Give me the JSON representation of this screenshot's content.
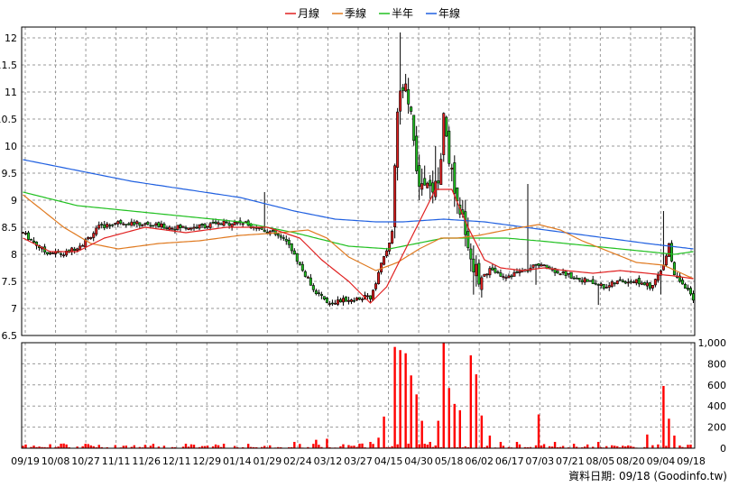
{
  "chart_data": {
    "type": "candlestick",
    "legend": [
      {
        "name": "月線",
        "color": "#e02020"
      },
      {
        "name": "季線",
        "color": "#e07a20"
      },
      {
        "name": "半年",
        "color": "#20c020"
      },
      {
        "name": "年線",
        "color": "#2060e0"
      }
    ],
    "source_text": "資料日期: 09/18  (Goodinfo.tw)",
    "price_ylim": [
      6.5,
      12.2
    ],
    "price_ticks": [
      "12",
      "11.5",
      "11",
      "10.5",
      "10",
      "9.5",
      "9",
      "8.5",
      "8",
      "7.5",
      "7",
      "6.5"
    ],
    "volume_ylim": [
      0,
      1000
    ],
    "volume_ticks": [
      "1,000",
      "800",
      "600",
      "400",
      "200",
      "0"
    ],
    "x_labels": [
      "09/19",
      "10/08",
      "10/27",
      "11/11",
      "11/26",
      "12/11",
      "12/29",
      "01/14",
      "01/29",
      "02/24",
      "03/12",
      "03/27",
      "04/15",
      "04/30",
      "05/18",
      "06/02",
      "06/17",
      "07/03",
      "07/21",
      "08/05",
      "08/20",
      "09/04",
      "09/18"
    ],
    "n_bars": 248,
    "series_keypoints": {
      "close": [
        [
          0,
          8.4
        ],
        [
          8,
          8.05
        ],
        [
          15,
          8.0
        ],
        [
          22,
          8.2
        ],
        [
          28,
          8.5
        ],
        [
          36,
          8.6
        ],
        [
          45,
          8.55
        ],
        [
          55,
          8.5
        ],
        [
          63,
          8.5
        ],
        [
          70,
          8.55
        ],
        [
          80,
          8.6
        ],
        [
          86,
          8.5
        ],
        [
          92,
          8.4
        ],
        [
          98,
          8.2
        ],
        [
          103,
          7.7
        ],
        [
          108,
          7.3
        ],
        [
          112,
          7.1
        ],
        [
          118,
          7.15
        ],
        [
          124,
          7.2
        ],
        [
          128,
          7.2
        ],
        [
          132,
          7.8
        ],
        [
          136,
          8.4
        ],
        [
          138,
          10.8
        ],
        [
          141,
          11.0
        ],
        [
          143,
          10.5
        ],
        [
          146,
          9.3
        ],
        [
          150,
          9.2
        ],
        [
          153,
          9.3
        ],
        [
          155,
          10.5
        ],
        [
          157,
          9.8
        ],
        [
          160,
          9.0
        ],
        [
          163,
          8.5
        ],
        [
          165,
          7.9
        ],
        [
          168,
          7.6
        ],
        [
          172,
          7.7
        ],
        [
          178,
          7.6
        ],
        [
          185,
          7.7
        ],
        [
          190,
          7.8
        ],
        [
          196,
          7.7
        ],
        [
          202,
          7.6
        ],
        [
          208,
          7.5
        ],
        [
          214,
          7.4
        ],
        [
          220,
          7.5
        ],
        [
          226,
          7.5
        ],
        [
          232,
          7.4
        ],
        [
          236,
          7.8
        ],
        [
          238,
          8.2
        ],
        [
          240,
          7.6
        ],
        [
          244,
          7.4
        ],
        [
          247,
          7.15
        ]
      ],
      "high_spikes": [
        [
          89,
          9.15
        ],
        [
          139,
          12.1
        ],
        [
          152,
          10.0
        ],
        [
          186,
          9.3
        ],
        [
          236,
          8.8
        ]
      ],
      "ma_month": [
        [
          0,
          8.3
        ],
        [
          10,
          8.05
        ],
        [
          20,
          8.05
        ],
        [
          30,
          8.3
        ],
        [
          45,
          8.5
        ],
        [
          60,
          8.4
        ],
        [
          75,
          8.5
        ],
        [
          90,
          8.5
        ],
        [
          102,
          8.3
        ],
        [
          110,
          7.9
        ],
        [
          120,
          7.5
        ],
        [
          128,
          7.1
        ],
        [
          134,
          7.4
        ],
        [
          140,
          8.0
        ],
        [
          146,
          8.6
        ],
        [
          152,
          9.2
        ],
        [
          158,
          9.2
        ],
        [
          164,
          8.5
        ],
        [
          170,
          7.9
        ],
        [
          176,
          7.75
        ],
        [
          184,
          7.7
        ],
        [
          192,
          7.75
        ],
        [
          200,
          7.7
        ],
        [
          210,
          7.65
        ],
        [
          220,
          7.7
        ],
        [
          230,
          7.65
        ],
        [
          240,
          7.6
        ],
        [
          247,
          7.55
        ]
      ],
      "ma_quarter": [
        [
          0,
          9.1
        ],
        [
          15,
          8.5
        ],
        [
          25,
          8.2
        ],
        [
          35,
          8.1
        ],
        [
          50,
          8.2
        ],
        [
          65,
          8.25
        ],
        [
          80,
          8.35
        ],
        [
          95,
          8.4
        ],
        [
          105,
          8.45
        ],
        [
          112,
          8.3
        ],
        [
          120,
          7.95
        ],
        [
          130,
          7.7
        ],
        [
          138,
          7.85
        ],
        [
          146,
          8.1
        ],
        [
          154,
          8.3
        ],
        [
          160,
          8.3
        ],
        [
          168,
          8.35
        ],
        [
          178,
          8.45
        ],
        [
          190,
          8.55
        ],
        [
          198,
          8.45
        ],
        [
          206,
          8.25
        ],
        [
          216,
          8.05
        ],
        [
          226,
          7.85
        ],
        [
          236,
          7.8
        ],
        [
          247,
          7.55
        ]
      ],
      "ma_half": [
        [
          0,
          9.15
        ],
        [
          20,
          8.9
        ],
        [
          40,
          8.8
        ],
        [
          60,
          8.7
        ],
        [
          80,
          8.6
        ],
        [
          100,
          8.4
        ],
        [
          120,
          8.15
        ],
        [
          135,
          8.1
        ],
        [
          145,
          8.2
        ],
        [
          155,
          8.3
        ],
        [
          165,
          8.3
        ],
        [
          178,
          8.3
        ],
        [
          190,
          8.25
        ],
        [
          200,
          8.2
        ],
        [
          210,
          8.15
        ],
        [
          220,
          8.1
        ],
        [
          230,
          8.05
        ],
        [
          240,
          8.0
        ],
        [
          247,
          8.05
        ]
      ],
      "ma_year": [
        [
          0,
          9.75
        ],
        [
          20,
          9.55
        ],
        [
          40,
          9.35
        ],
        [
          60,
          9.2
        ],
        [
          80,
          9.05
        ],
        [
          100,
          8.8
        ],
        [
          115,
          8.65
        ],
        [
          130,
          8.6
        ],
        [
          140,
          8.6
        ],
        [
          155,
          8.65
        ],
        [
          170,
          8.6
        ],
        [
          185,
          8.5
        ],
        [
          200,
          8.4
        ],
        [
          215,
          8.3
        ],
        [
          230,
          8.2
        ],
        [
          247,
          8.1
        ]
      ],
      "volume_spikes": [
        [
          100,
          60
        ],
        [
          108,
          80
        ],
        [
          112,
          90
        ],
        [
          120,
          30
        ],
        [
          128,
          60
        ],
        [
          131,
          100
        ],
        [
          133,
          300
        ],
        [
          137,
          960
        ],
        [
          139,
          930
        ],
        [
          141,
          900
        ],
        [
          143,
          690
        ],
        [
          145,
          510
        ],
        [
          147,
          260
        ],
        [
          150,
          60
        ],
        [
          153,
          260
        ],
        [
          155,
          1000
        ],
        [
          157,
          570
        ],
        [
          159,
          420
        ],
        [
          161,
          360
        ],
        [
          165,
          880
        ],
        [
          167,
          700
        ],
        [
          169,
          310
        ],
        [
          172,
          120
        ],
        [
          176,
          60
        ],
        [
          182,
          60
        ],
        [
          190,
          320
        ],
        [
          196,
          60
        ],
        [
          212,
          60
        ],
        [
          230,
          130
        ],
        [
          236,
          590
        ],
        [
          238,
          280
        ],
        [
          240,
          120
        ]
      ]
    }
  }
}
